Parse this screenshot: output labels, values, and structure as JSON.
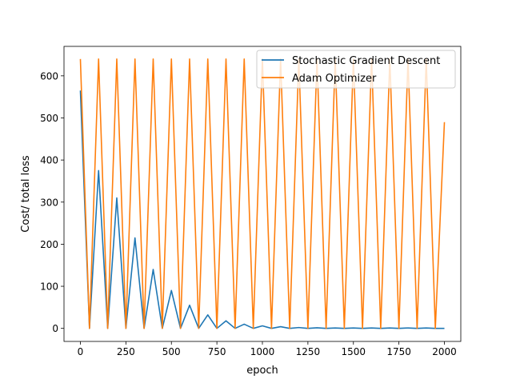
{
  "chart_data": {
    "type": "line",
    "xlabel": "epoch",
    "ylabel": "Cost/ total loss",
    "xlim": [
      -90,
      2090
    ],
    "ylim": [
      -31,
      670
    ],
    "x_ticks": [
      0,
      250,
      500,
      750,
      1000,
      1250,
      1500,
      1750,
      2000
    ],
    "x_tick_labels": [
      "0",
      "250",
      "500",
      "750",
      "1000",
      "1250",
      "1500",
      "1750",
      "2000"
    ],
    "y_ticks": [
      0,
      100,
      200,
      300,
      400,
      500,
      600
    ],
    "y_tick_labels": [
      "0",
      "100",
      "200",
      "300",
      "400",
      "500",
      "600"
    ],
    "legend_position": "top-right",
    "grid": false,
    "series": [
      {
        "name": "Stochastic Gradient Descent",
        "color": "#1f77b4",
        "x": [
          0,
          50,
          100,
          150,
          200,
          250,
          300,
          350,
          400,
          450,
          500,
          550,
          600,
          650,
          700,
          750,
          800,
          850,
          900,
          950,
          1000,
          1050,
          1100,
          1150,
          1200,
          1250,
          1300,
          1350,
          1400,
          1450,
          1500,
          1550,
          1600,
          1650,
          1700,
          1750,
          1800,
          1850,
          1900,
          1950,
          2000
        ],
        "y": [
          565,
          0,
          375,
          0,
          310,
          0,
          215,
          0,
          140,
          0,
          90,
          0,
          55,
          0,
          32,
          0,
          18,
          0,
          10,
          0,
          6,
          0,
          4,
          0,
          2,
          0,
          1.5,
          0,
          1,
          0,
          1,
          0,
          1,
          0,
          1,
          0,
          1,
          0,
          1,
          0,
          0
        ]
      },
      {
        "name": "Adam Optimizer",
        "color": "#ff7f0e",
        "x": [
          0,
          50,
          100,
          150,
          200,
          250,
          300,
          350,
          400,
          450,
          500,
          550,
          600,
          650,
          700,
          750,
          800,
          850,
          900,
          950,
          1000,
          1050,
          1100,
          1150,
          1200,
          1250,
          1300,
          1350,
          1400,
          1450,
          1500,
          1550,
          1600,
          1650,
          1700,
          1750,
          1800,
          1850,
          1900,
          1950,
          2000
        ],
        "y": [
          640,
          0,
          640,
          0,
          640,
          0,
          640,
          0,
          640,
          0,
          640,
          0,
          640,
          0,
          640,
          0,
          640,
          0,
          640,
          0,
          640,
          0,
          640,
          0,
          640,
          0,
          640,
          0,
          640,
          0,
          640,
          0,
          640,
          0,
          640,
          0,
          640,
          0,
          640,
          0,
          490
        ]
      }
    ]
  }
}
